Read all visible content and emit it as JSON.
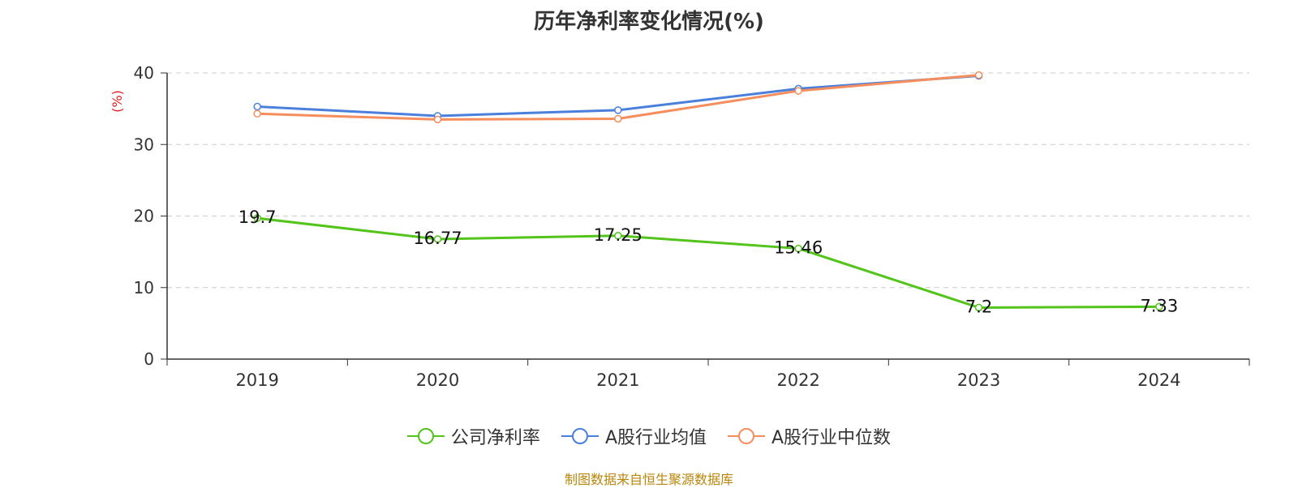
{
  "chart_data": {
    "type": "line",
    "title": "历年净利率变化情况(%)",
    "ylabel": "(%)",
    "xlabel": "",
    "categories": [
      "2019",
      "2020",
      "2021",
      "2022",
      "2023",
      "2024"
    ],
    "ylim": [
      0,
      40
    ],
    "yticks": [
      0,
      10,
      20,
      30,
      40
    ],
    "grid": true,
    "legend_position": "bottom",
    "series": [
      {
        "name": "公司净利率",
        "color": "#52c41a",
        "values": [
          19.7,
          16.77,
          17.25,
          15.46,
          7.2,
          7.33
        ],
        "data_labels": [
          "19.7",
          "16.77",
          "17.25",
          "15.46",
          "7.2",
          "7.33"
        ]
      },
      {
        "name": "A股行业均值",
        "color": "#4a7fdc",
        "values": [
          35.3,
          34.0,
          34.8,
          37.8,
          39.6,
          null
        ]
      },
      {
        "name": "A股行业中位数",
        "color": "#f58d5c",
        "values": [
          34.3,
          33.5,
          33.6,
          37.5,
          39.7,
          null
        ]
      }
    ]
  },
  "source_text": "制图数据来自恒生聚源数据库"
}
